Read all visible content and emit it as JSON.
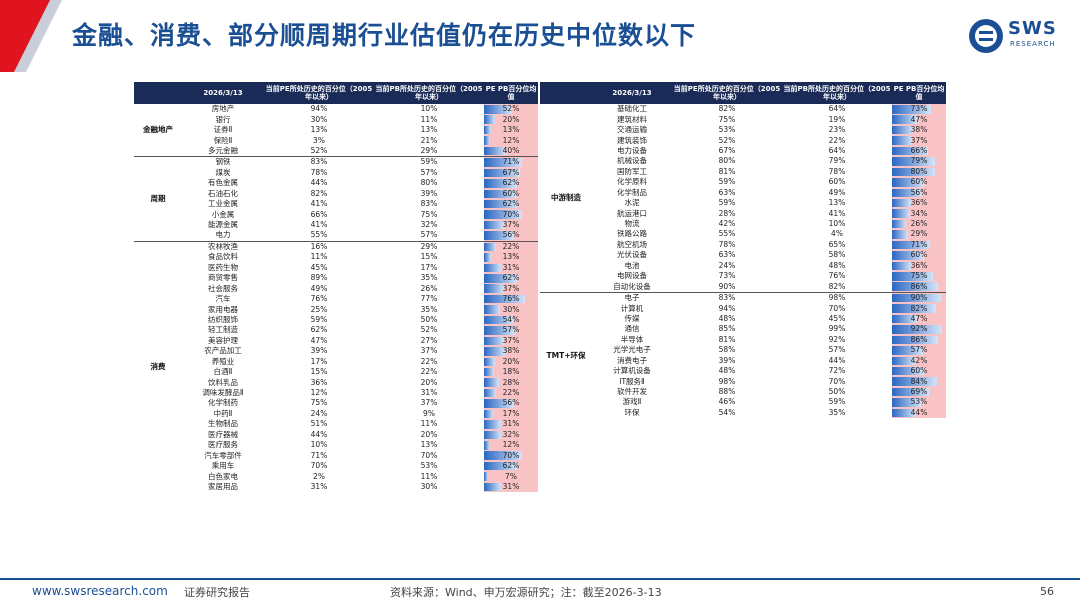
{
  "header": {
    "title": "金融、消费、部分顺周期行业估值仍在历史中位数以下",
    "logo_text": "SWS",
    "logo_sub": "RESEARCH"
  },
  "table_headers": {
    "date": "2026/3/13",
    "pe": "当前PE所处历史的百分位（2005年以来）",
    "pb": "当前PB所处历史的百分位（2005年以来）",
    "avg": "PE PB百分位均值"
  },
  "left_groups": [
    {
      "name": "金融地产",
      "rows": [
        [
          "房地产",
          "94%",
          "10%",
          52
        ],
        [
          "银行",
          "30%",
          "11%",
          20
        ],
        [
          "证券Ⅱ",
          "13%",
          "13%",
          13
        ],
        [
          "保险Ⅱ",
          "3%",
          "21%",
          12
        ],
        [
          "多元金融",
          "52%",
          "29%",
          40
        ]
      ]
    },
    {
      "name": "周期",
      "rows": [
        [
          "钢铁",
          "83%",
          "59%",
          71
        ],
        [
          "煤炭",
          "78%",
          "57%",
          67
        ],
        [
          "有色金属",
          "44%",
          "80%",
          62
        ],
        [
          "石油石化",
          "82%",
          "39%",
          60
        ],
        [
          "工业金属",
          "41%",
          "83%",
          62
        ],
        [
          "小金属",
          "66%",
          "75%",
          70
        ],
        [
          "能源金属",
          "41%",
          "32%",
          37
        ],
        [
          "电力",
          "55%",
          "57%",
          56
        ]
      ]
    },
    {
      "name": "消费",
      "rows": [
        [
          "农林牧渔",
          "16%",
          "29%",
          22
        ],
        [
          "食品饮料",
          "11%",
          "15%",
          13
        ],
        [
          "医药生物",
          "45%",
          "17%",
          31
        ],
        [
          "商贸零售",
          "89%",
          "35%",
          62
        ],
        [
          "社会服务",
          "49%",
          "26%",
          37
        ],
        [
          "汽车",
          "76%",
          "77%",
          76
        ],
        [
          "家用电器",
          "25%",
          "35%",
          30
        ],
        [
          "纺织服饰",
          "59%",
          "50%",
          54
        ],
        [
          "轻工制造",
          "62%",
          "52%",
          57
        ],
        [
          "美容护理",
          "47%",
          "27%",
          37
        ],
        [
          "农产品加工",
          "39%",
          "37%",
          38
        ],
        [
          "养殖业",
          "17%",
          "22%",
          20
        ],
        [
          "白酒Ⅱ",
          "15%",
          "22%",
          18
        ],
        [
          "饮料乳品",
          "36%",
          "20%",
          28
        ],
        [
          "调味发酵品Ⅱ",
          "12%",
          "31%",
          22
        ],
        [
          "化学制药",
          "75%",
          "37%",
          56
        ],
        [
          "中药Ⅱ",
          "24%",
          "9%",
          17
        ],
        [
          "生物制品",
          "51%",
          "11%",
          31
        ],
        [
          "医疗器械",
          "44%",
          "20%",
          32
        ],
        [
          "医疗服务",
          "10%",
          "13%",
          12
        ],
        [
          "汽车零部件",
          "71%",
          "70%",
          70
        ],
        [
          "乘用车",
          "70%",
          "53%",
          62
        ],
        [
          "白色家电",
          "2%",
          "11%",
          7
        ],
        [
          "家居用品",
          "31%",
          "30%",
          31
        ]
      ]
    }
  ],
  "right_groups": [
    {
      "name": "中游制造",
      "rows": [
        [
          "基础化工",
          "82%",
          "64%",
          73
        ],
        [
          "建筑材料",
          "75%",
          "19%",
          47
        ],
        [
          "交通运输",
          "53%",
          "23%",
          38
        ],
        [
          "建筑装饰",
          "52%",
          "22%",
          37
        ],
        [
          "电力设备",
          "67%",
          "64%",
          66
        ],
        [
          "机械设备",
          "80%",
          "79%",
          79
        ],
        [
          "国防军工",
          "81%",
          "78%",
          80
        ],
        [
          "化学原料",
          "59%",
          "60%",
          60
        ],
        [
          "化学制品",
          "63%",
          "49%",
          56
        ],
        [
          "水泥",
          "59%",
          "13%",
          36
        ],
        [
          "航运港口",
          "28%",
          "41%",
          34
        ],
        [
          "物流",
          "42%",
          "10%",
          26
        ],
        [
          "铁路公路",
          "55%",
          "4%",
          29
        ],
        [
          "航空机场",
          "78%",
          "65%",
          71
        ],
        [
          "光伏设备",
          "63%",
          "58%",
          60
        ],
        [
          "电池",
          "24%",
          "48%",
          36
        ],
        [
          "电网设备",
          "73%",
          "76%",
          75
        ],
        [
          "自动化设备",
          "90%",
          "82%",
          86
        ]
      ]
    },
    {
      "name": "TMT+环保",
      "rows": [
        [
          "电子",
          "83%",
          "98%",
          90
        ],
        [
          "计算机",
          "94%",
          "70%",
          82
        ],
        [
          "传媒",
          "48%",
          "45%",
          47
        ],
        [
          "通信",
          "85%",
          "99%",
          92
        ],
        [
          "半导体",
          "81%",
          "92%",
          86
        ],
        [
          "光学光电子",
          "58%",
          "57%",
          57
        ],
        [
          "消费电子",
          "39%",
          "44%",
          42
        ],
        [
          "计算机设备",
          "48%",
          "72%",
          60
        ],
        [
          "IT服务Ⅱ",
          "98%",
          "70%",
          84
        ],
        [
          "软件开发",
          "88%",
          "50%",
          69
        ],
        [
          "游戏Ⅱ",
          "46%",
          "59%",
          53
        ],
        [
          "环保",
          "54%",
          "35%",
          44
        ]
      ]
    }
  ],
  "footer": {
    "url": "www.swsresearch.com",
    "label": "证券研究报告",
    "source": "资料来源：Wind、申万宏源研究；注：截至2026-3-13",
    "page": "56"
  },
  "colors": {
    "title": "#1b4f93",
    "header_bg": "#1a2b57",
    "bar": "#2a67c2",
    "bar_bg": "#f9c3c5",
    "accent_red": "#e0141e"
  }
}
